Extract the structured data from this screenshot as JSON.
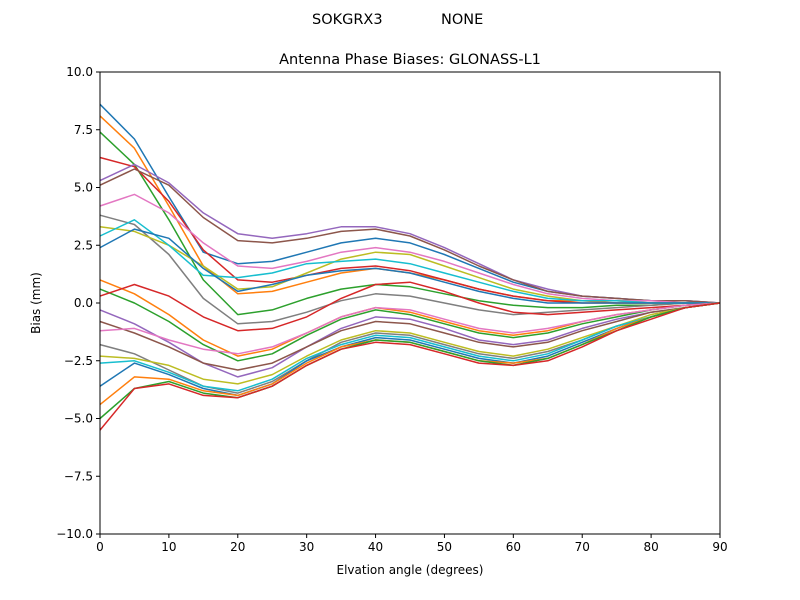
{
  "figure": {
    "suptitle_left": "SOKGRX3",
    "suptitle_right": "NONE"
  },
  "chart_data": {
    "type": "line",
    "title": "Antenna Phase Biases: GLONASS-L1",
    "xlabel": "Elvation angle (degrees)",
    "ylabel": "Bias (mm)",
    "xlim": [
      0,
      90
    ],
    "ylim": [
      -10,
      10
    ],
    "xticks": [
      "0",
      "10",
      "20",
      "30",
      "40",
      "50",
      "60",
      "70",
      "80",
      "90"
    ],
    "yticks": [
      "−10.0",
      "−7.5",
      "−5.0",
      "−2.5",
      "0.0",
      "2.5",
      "5.0",
      "7.5",
      "10.0"
    ],
    "grid": false,
    "legend": "none",
    "color_cycle": [
      "#1f77b4",
      "#ff7f0e",
      "#2ca02c",
      "#d62728",
      "#9467bd",
      "#8c564b",
      "#e377c2",
      "#7f7f7f",
      "#bcbd22",
      "#17becf"
    ],
    "x": [
      0,
      5,
      10,
      15,
      20,
      25,
      30,
      35,
      40,
      45,
      50,
      55,
      60,
      65,
      70,
      75,
      80,
      85,
      90
    ],
    "series": [
      {
        "values": [
          8.6,
          7.1,
          4.6,
          2.2,
          1.7,
          1.8,
          2.2,
          2.6,
          2.8,
          2.6,
          2.1,
          1.5,
          0.9,
          0.5,
          0.3,
          0.2,
          0.1,
          0.1,
          0.0
        ]
      },
      {
        "values": [
          8.1,
          6.7,
          4.2,
          1.6,
          0.4,
          0.5,
          0.9,
          1.3,
          1.5,
          1.3,
          1.0,
          0.6,
          0.3,
          0.1,
          0.1,
          0.0,
          0.0,
          0.0,
          0.0
        ]
      },
      {
        "values": [
          7.4,
          6.0,
          3.6,
          1.0,
          -0.5,
          -0.3,
          0.2,
          0.6,
          0.8,
          0.7,
          0.4,
          0.1,
          -0.1,
          -0.2,
          -0.2,
          -0.1,
          -0.1,
          0.0,
          0.0
        ]
      },
      {
        "values": [
          6.3,
          5.9,
          4.4,
          2.3,
          1.0,
          0.9,
          1.2,
          1.5,
          1.6,
          1.4,
          1.0,
          0.6,
          0.3,
          0.1,
          0.0,
          0.0,
          0.0,
          0.0,
          0.0
        ]
      },
      {
        "values": [
          5.3,
          6.0,
          5.2,
          3.9,
          3.0,
          2.8,
          3.0,
          3.3,
          3.3,
          3.0,
          2.4,
          1.7,
          1.0,
          0.6,
          0.3,
          0.2,
          0.1,
          0.1,
          0.0
        ]
      },
      {
        "values": [
          5.1,
          5.8,
          5.1,
          3.7,
          2.7,
          2.6,
          2.8,
          3.1,
          3.2,
          2.9,
          2.3,
          1.6,
          1.0,
          0.5,
          0.3,
          0.2,
          0.1,
          0.1,
          0.0
        ]
      },
      {
        "values": [
          4.2,
          4.7,
          3.9,
          2.6,
          1.6,
          1.5,
          1.8,
          2.2,
          2.4,
          2.2,
          1.8,
          1.3,
          0.8,
          0.4,
          0.2,
          0.1,
          0.1,
          0.0,
          0.0
        ]
      },
      {
        "values": [
          3.8,
          3.4,
          2.1,
          0.2,
          -0.9,
          -0.8,
          -0.4,
          0.1,
          0.4,
          0.3,
          0.0,
          -0.3,
          -0.5,
          -0.4,
          -0.3,
          -0.2,
          -0.1,
          0.0,
          0.0
        ]
      },
      {
        "values": [
          3.3,
          3.1,
          2.5,
          1.6,
          0.6,
          0.7,
          1.3,
          1.9,
          2.2,
          2.1,
          1.6,
          1.1,
          0.6,
          0.3,
          0.1,
          0.1,
          0.0,
          0.0,
          0.0
        ]
      },
      {
        "values": [
          2.9,
          3.6,
          2.5,
          1.2,
          1.1,
          1.3,
          1.7,
          1.8,
          1.9,
          1.7,
          1.3,
          0.9,
          0.5,
          0.2,
          0.1,
          0.1,
          0.0,
          0.0,
          0.0
        ]
      },
      {
        "values": [
          2.4,
          3.2,
          2.8,
          1.5,
          0.5,
          0.8,
          1.2,
          1.4,
          1.5,
          1.3,
          0.9,
          0.5,
          0.2,
          0.0,
          0.0,
          0.0,
          0.0,
          0.0,
          0.0
        ]
      },
      {
        "values": [
          1.0,
          0.4,
          -0.5,
          -1.6,
          -2.3,
          -2.0,
          -1.3,
          -0.6,
          -0.2,
          -0.4,
          -0.8,
          -1.2,
          -1.4,
          -1.2,
          -0.8,
          -0.5,
          -0.3,
          -0.1,
          0.0
        ]
      },
      {
        "values": [
          0.6,
          0.0,
          -0.8,
          -1.8,
          -2.5,
          -2.2,
          -1.4,
          -0.7,
          -0.3,
          -0.5,
          -0.9,
          -1.3,
          -1.5,
          -1.3,
          -0.9,
          -0.6,
          -0.3,
          -0.1,
          0.0
        ]
      },
      {
        "values": [
          0.3,
          0.8,
          0.3,
          -0.6,
          -1.2,
          -1.1,
          -0.6,
          0.2,
          0.8,
          0.9,
          0.5,
          0.0,
          -0.4,
          -0.5,
          -0.4,
          -0.3,
          -0.2,
          -0.1,
          0.0
        ]
      },
      {
        "values": [
          -0.3,
          -0.9,
          -1.7,
          -2.6,
          -3.2,
          -2.8,
          -1.9,
          -1.1,
          -0.6,
          -0.7,
          -1.1,
          -1.6,
          -1.8,
          -1.6,
          -1.1,
          -0.7,
          -0.4,
          -0.2,
          0.0
        ]
      },
      {
        "values": [
          -0.8,
          -1.3,
          -1.9,
          -2.6,
          -2.9,
          -2.6,
          -1.9,
          -1.2,
          -0.8,
          -0.9,
          -1.3,
          -1.7,
          -1.9,
          -1.7,
          -1.2,
          -0.8,
          -0.4,
          -0.2,
          0.0
        ]
      },
      {
        "values": [
          -1.2,
          -1.1,
          -1.6,
          -2.0,
          -2.2,
          -1.9,
          -1.3,
          -0.6,
          -0.2,
          -0.3,
          -0.7,
          -1.1,
          -1.3,
          -1.1,
          -0.8,
          -0.5,
          -0.3,
          -0.1,
          0.0
        ]
      },
      {
        "values": [
          -1.8,
          -2.2,
          -2.9,
          -3.6,
          -3.9,
          -3.4,
          -2.5,
          -1.7,
          -1.3,
          -1.4,
          -1.8,
          -2.2,
          -2.4,
          -2.1,
          -1.6,
          -1.0,
          -0.6,
          -0.2,
          0.0
        ]
      },
      {
        "values": [
          -2.3,
          -2.4,
          -2.7,
          -3.3,
          -3.5,
          -3.1,
          -2.3,
          -1.6,
          -1.2,
          -1.3,
          -1.7,
          -2.1,
          -2.3,
          -2.0,
          -1.5,
          -1.0,
          -0.5,
          -0.2,
          0.0
        ]
      },
      {
        "values": [
          -2.6,
          -2.5,
          -3.0,
          -3.6,
          -3.8,
          -3.3,
          -2.4,
          -1.8,
          -1.4,
          -1.5,
          -1.9,
          -2.3,
          -2.5,
          -2.2,
          -1.6,
          -1.0,
          -0.6,
          -0.2,
          0.0
        ]
      },
      {
        "values": [
          -3.6,
          -2.6,
          -3.1,
          -3.7,
          -4.0,
          -3.5,
          -2.5,
          -1.9,
          -1.5,
          -1.6,
          -2.0,
          -2.4,
          -2.6,
          -2.3,
          -1.7,
          -1.1,
          -0.6,
          -0.2,
          0.0
        ]
      },
      {
        "values": [
          -4.4,
          -3.2,
          -3.3,
          -3.8,
          -4.0,
          -3.5,
          -2.6,
          -1.9,
          -1.6,
          -1.7,
          -2.1,
          -2.5,
          -2.6,
          -2.4,
          -1.8,
          -1.1,
          -0.6,
          -0.2,
          0.0
        ]
      },
      {
        "values": [
          -5.0,
          -3.7,
          -3.4,
          -3.9,
          -4.1,
          -3.6,
          -2.7,
          -2.0,
          -1.6,
          -1.7,
          -2.1,
          -2.5,
          -2.7,
          -2.4,
          -1.8,
          -1.2,
          -0.6,
          -0.2,
          0.0
        ]
      },
      {
        "values": [
          -5.5,
          -3.7,
          -3.5,
          -4.0,
          -4.1,
          -3.6,
          -2.7,
          -2.0,
          -1.7,
          -1.8,
          -2.2,
          -2.6,
          -2.7,
          -2.5,
          -1.9,
          -1.2,
          -0.7,
          -0.2,
          0.0
        ]
      }
    ]
  }
}
